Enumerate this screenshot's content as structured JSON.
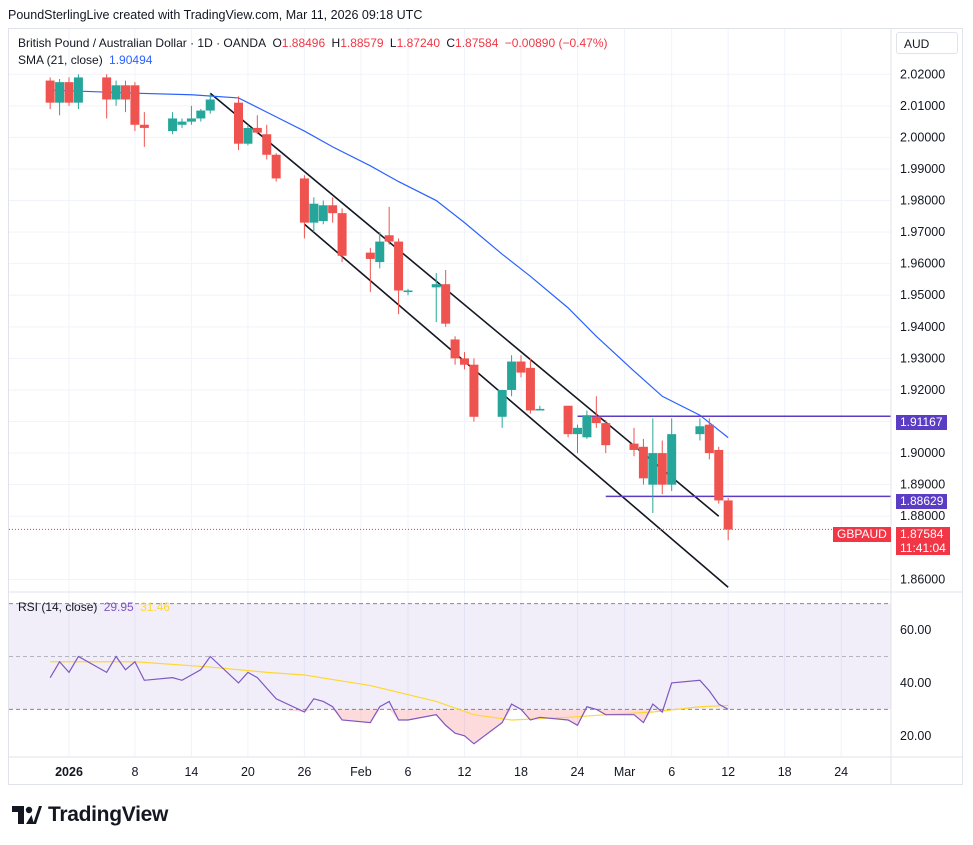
{
  "header": {
    "credit": "PoundSterlingLive created with TradingView.com, Mar 11, 2026 09:18 UTC"
  },
  "legend": {
    "title": "British Pound / Australian Dollar · 1D · OANDA",
    "open_label": "O",
    "open_value": "1.88496",
    "high_label": "H",
    "high_value": "1.88579",
    "low_label": "L",
    "low_value": "1.87240",
    "close_label": "C",
    "close_value": "1.87584",
    "change": "−0.00890 (−0.47%)",
    "sma_label": "SMA (21, close)",
    "sma_value": "1.90494",
    "rsi_label": "RSI (14, close)",
    "rsi_value": "29.95",
    "rsi_ma_value": "31.46"
  },
  "currency_button": "AUD",
  "price_tags": {
    "upper_level": "1.91167",
    "lower_level": "1.88629",
    "symbol": "GBPAUD",
    "last_price": "1.87584",
    "countdown": "11:41:04"
  },
  "colors": {
    "up": "#26a69a",
    "down": "#ef5350",
    "sma": "#2962ff",
    "rsi": "#7e57c2",
    "rsi_ma": "#fdd835",
    "level": "#5b3cc4"
  },
  "branding": {
    "logo_text": "TradingView"
  },
  "chart_data": {
    "type": "candlestick",
    "price_axis": {
      "range": [
        1.856,
        2.028
      ],
      "ticks": [
        "2.02000",
        "2.01000",
        "2.00000",
        "1.99000",
        "1.98000",
        "1.97000",
        "1.96000",
        "1.95000",
        "1.94000",
        "1.93000",
        "1.92000",
        "1.91000",
        "1.90000",
        "1.89000",
        "1.88000",
        "1.86000"
      ],
      "tick_values": [
        2.02,
        2.01,
        2.0,
        1.99,
        1.98,
        1.97,
        1.96,
        1.95,
        1.94,
        1.93,
        1.92,
        1.91,
        1.9,
        1.89,
        1.88,
        1.86
      ]
    },
    "time_axis": {
      "labels": [
        "2026",
        "8",
        "14",
        "20",
        "26",
        "Feb",
        "6",
        "12",
        "18",
        "24",
        "Mar",
        "6",
        "12",
        "18",
        "24"
      ],
      "label_dates": [
        "2026-01-01",
        "2026-01-08",
        "2026-01-14",
        "2026-01-20",
        "2026-01-26",
        "2026-02-01",
        "2026-02-06",
        "2026-02-12",
        "2026-02-18",
        "2026-02-24",
        "2026-03-01",
        "2026-03-06",
        "2026-03-12",
        "2026-03-18",
        "2026-03-24"
      ],
      "bold": [
        "2026"
      ]
    },
    "candles": [
      {
        "d": "2025-12-30",
        "o": 2.018,
        "h": 2.019,
        "l": 2.009,
        "c": 2.011
      },
      {
        "d": "2025-12-31",
        "o": 2.011,
        "h": 2.0185,
        "l": 2.007,
        "c": 2.0175
      },
      {
        "d": "2026-01-01",
        "o": 2.0175,
        "h": 2.019,
        "l": 2.01,
        "c": 2.011
      },
      {
        "d": "2026-01-02",
        "o": 2.011,
        "h": 2.02,
        "l": 2.009,
        "c": 2.019
      },
      {
        "d": "2026-01-05",
        "o": 2.019,
        "h": 2.02,
        "l": 2.006,
        "c": 2.012
      },
      {
        "d": "2026-01-06",
        "o": 2.012,
        "h": 2.018,
        "l": 2.01,
        "c": 2.0165
      },
      {
        "d": "2026-01-07",
        "o": 2.0165,
        "h": 2.018,
        "l": 2.008,
        "c": 2.012
      },
      {
        "d": "2026-01-08",
        "o": 2.0165,
        "h": 2.0175,
        "l": 2.002,
        "c": 2.004
      },
      {
        "d": "2026-01-09",
        "o": 2.004,
        "h": 2.008,
        "l": 1.997,
        "c": 2.003
      },
      {
        "d": "2026-01-12",
        "o": 2.002,
        "h": 2.008,
        "l": 2.001,
        "c": 2.006
      },
      {
        "d": "2026-01-13",
        "o": 2.004,
        "h": 2.006,
        "l": 2.003,
        "c": 2.005
      },
      {
        "d": "2026-01-14",
        "o": 2.005,
        "h": 2.01,
        "l": 2.004,
        "c": 2.006
      },
      {
        "d": "2026-01-15",
        "o": 2.006,
        "h": 2.009,
        "l": 2.005,
        "c": 2.0085
      },
      {
        "d": "2026-01-16",
        "o": 2.0085,
        "h": 2.014,
        "l": 2.0075,
        "c": 2.012
      },
      {
        "d": "2026-01-19",
        "o": 2.011,
        "h": 2.013,
        "l": 1.996,
        "c": 1.998
      },
      {
        "d": "2026-01-20",
        "o": 1.998,
        "h": 2.004,
        "l": 1.9975,
        "c": 2.003
      },
      {
        "d": "2026-01-21",
        "o": 2.003,
        "h": 2.007,
        "l": 2.001,
        "c": 2.0015
      },
      {
        "d": "2026-01-22",
        "o": 2.001,
        "h": 2.004,
        "l": 1.993,
        "c": 1.9945
      },
      {
        "d": "2026-01-23",
        "o": 1.9945,
        "h": 1.995,
        "l": 1.986,
        "c": 1.987
      },
      {
        "d": "2026-01-26",
        "o": 1.987,
        "h": 1.988,
        "l": 1.968,
        "c": 1.973
      },
      {
        "d": "2026-01-27",
        "o": 1.973,
        "h": 1.981,
        "l": 1.97,
        "c": 1.979
      },
      {
        "d": "2026-01-28",
        "o": 1.9735,
        "h": 1.98,
        "l": 1.9725,
        "c": 1.9785
      },
      {
        "d": "2026-01-29",
        "o": 1.9785,
        "h": 1.981,
        "l": 1.973,
        "c": 1.976
      },
      {
        "d": "2026-01-30",
        "o": 1.976,
        "h": 1.9775,
        "l": 1.9605,
        "c": 1.9625
      },
      {
        "d": "2026-02-02",
        "o": 1.9635,
        "h": 1.965,
        "l": 1.951,
        "c": 1.9615
      },
      {
        "d": "2026-02-03",
        "o": 1.9605,
        "h": 1.97,
        "l": 1.9585,
        "c": 1.967
      },
      {
        "d": "2026-02-04",
        "o": 1.969,
        "h": 1.978,
        "l": 1.966,
        "c": 1.967
      },
      {
        "d": "2026-02-05",
        "o": 1.967,
        "h": 1.968,
        "l": 1.944,
        "c": 1.9515
      },
      {
        "d": "2026-02-06",
        "o": 1.951,
        "h": 1.952,
        "l": 1.95,
        "c": 1.9515
      },
      {
        "d": "2026-02-09",
        "o": 1.9525,
        "h": 1.957,
        "l": 1.9415,
        "c": 1.9535
      },
      {
        "d": "2026-02-10",
        "o": 1.9535,
        "h": 1.958,
        "l": 1.94,
        "c": 1.941
      },
      {
        "d": "2026-02-11",
        "o": 1.936,
        "h": 1.937,
        "l": 1.928,
        "c": 1.93
      },
      {
        "d": "2026-02-12",
        "o": 1.93,
        "h": 1.932,
        "l": 1.9265,
        "c": 1.928
      },
      {
        "d": "2026-02-13",
        "o": 1.928,
        "h": 1.93,
        "l": 1.91,
        "c": 1.9115
      },
      {
        "d": "2026-02-16",
        "o": 1.9115,
        "h": 1.92,
        "l": 1.908,
        "c": 1.92
      },
      {
        "d": "2026-02-17",
        "o": 1.92,
        "h": 1.931,
        "l": 1.918,
        "c": 1.929
      },
      {
        "d": "2026-02-18",
        "o": 1.929,
        "h": 1.931,
        "l": 1.924,
        "c": 1.9255
      },
      {
        "d": "2026-02-19",
        "o": 1.927,
        "h": 1.93,
        "l": 1.9125,
        "c": 1.9135
      },
      {
        "d": "2026-02-20",
        "o": 1.9135,
        "h": 1.915,
        "l": 1.9135,
        "c": 1.914
      },
      {
        "d": "2026-02-23",
        "o": 1.915,
        "h": 1.915,
        "l": 1.905,
        "c": 1.906
      },
      {
        "d": "2026-02-24",
        "o": 1.906,
        "h": 1.909,
        "l": 1.9,
        "c": 1.908
      },
      {
        "d": "2026-02-25",
        "o": 1.905,
        "h": 1.9135,
        "l": 1.9045,
        "c": 1.912
      },
      {
        "d": "2026-02-26",
        "o": 1.9115,
        "h": 1.918,
        "l": 1.908,
        "c": 1.9095
      },
      {
        "d": "2026-02-27",
        "o": 1.9095,
        "h": 1.9105,
        "l": 1.9,
        "c": 1.9025
      },
      {
        "d": "2026-03-02",
        "o": 1.903,
        "h": 1.908,
        "l": 1.899,
        "c": 1.901
      },
      {
        "d": "2026-03-03",
        "o": 1.902,
        "h": 1.9045,
        "l": 1.89,
        "c": 1.892
      },
      {
        "d": "2026-03-04",
        "o": 1.89,
        "h": 1.911,
        "l": 1.881,
        "c": 1.9
      },
      {
        "d": "2026-03-05",
        "o": 1.9,
        "h": 1.904,
        "l": 1.887,
        "c": 1.89
      },
      {
        "d": "2026-03-06",
        "o": 1.89,
        "h": 1.911,
        "l": 1.888,
        "c": 1.906
      },
      {
        "d": "2026-03-09",
        "o": 1.906,
        "h": 1.911,
        "l": 1.904,
        "c": 1.9085
      },
      {
        "d": "2026-03-10",
        "o": 1.909,
        "h": 1.911,
        "l": 1.898,
        "c": 1.9
      },
      {
        "d": "2026-03-11",
        "o": 1.901,
        "h": 1.902,
        "l": 1.884,
        "c": 1.885
      },
      {
        "d": "2026-03-12",
        "o": 1.885,
        "h": 1.8858,
        "l": 1.8724,
        "c": 1.8758
      }
    ],
    "sma": {
      "name": "SMA (21, close)",
      "points": [
        [
          "2025-12-30",
          2.015
        ],
        [
          "2026-01-08",
          2.014
        ],
        [
          "2026-01-14",
          2.0135
        ],
        [
          "2026-01-19",
          2.0125
        ],
        [
          "2026-01-22",
          2.008
        ],
        [
          "2026-01-26",
          2.002
        ],
        [
          "2026-01-29",
          1.997
        ],
        [
          "2026-02-02",
          1.991
        ],
        [
          "2026-02-05",
          1.986
        ],
        [
          "2026-02-09",
          1.98
        ],
        [
          "2026-02-12",
          1.973
        ],
        [
          "2026-02-16",
          1.963
        ],
        [
          "2026-02-19",
          1.956
        ],
        [
          "2026-02-23",
          1.946
        ],
        [
          "2026-02-26",
          1.937
        ],
        [
          "2026-03-02",
          1.926
        ],
        [
          "2026-03-05",
          1.918
        ],
        [
          "2026-03-09",
          1.912
        ],
        [
          "2026-03-12",
          1.9049
        ]
      ]
    },
    "channel_lines": [
      {
        "from": [
          "2026-01-16",
          2.014
        ],
        "to": [
          "2026-03-11",
          1.88
        ]
      },
      {
        "from": [
          "2026-01-26",
          1.9725
        ],
        "to": [
          "2026-03-12",
          1.8575
        ]
      }
    ],
    "horizontal_levels": [
      {
        "from": "2026-02-24",
        "value": 1.91167
      },
      {
        "from": "2026-02-27",
        "value": 1.88629
      }
    ],
    "last_price": 1.87584,
    "rsi": {
      "name": "RSI (14, close)",
      "axis": {
        "range": [
          12,
          74
        ],
        "ticks": [
          "60.00",
          "40.00",
          "20.00"
        ],
        "tick_values": [
          60,
          40,
          20
        ],
        "bands": [
          70,
          50,
          30
        ]
      },
      "points": [
        [
          "2025-12-30",
          42
        ],
        [
          "2025-12-31",
          48
        ],
        [
          "2026-01-01",
          44
        ],
        [
          "2026-01-02",
          50
        ],
        [
          "2026-01-05",
          44
        ],
        [
          "2026-01-06",
          50
        ],
        [
          "2026-01-07",
          45
        ],
        [
          "2026-01-08",
          48
        ],
        [
          "2026-01-09",
          41
        ],
        [
          "2026-01-12",
          42
        ],
        [
          "2026-01-13",
          41
        ],
        [
          "2026-01-14",
          43
        ],
        [
          "2026-01-15",
          45
        ],
        [
          "2026-01-16",
          50
        ],
        [
          "2026-01-19",
          40
        ],
        [
          "2026-01-20",
          44
        ],
        [
          "2026-01-21",
          42
        ],
        [
          "2026-01-22",
          38
        ],
        [
          "2026-01-23",
          34
        ],
        [
          "2026-01-26",
          29
        ],
        [
          "2026-01-27",
          34
        ],
        [
          "2026-01-28",
          33
        ],
        [
          "2026-01-29",
          31
        ],
        [
          "2026-01-30",
          26
        ],
        [
          "2026-02-02",
          25
        ],
        [
          "2026-02-03",
          31
        ],
        [
          "2026-02-04",
          33
        ],
        [
          "2026-02-05",
          26
        ],
        [
          "2026-02-06",
          26
        ],
        [
          "2026-02-09",
          28
        ],
        [
          "2026-02-10",
          24
        ],
        [
          "2026-02-11",
          21
        ],
        [
          "2026-02-12",
          20
        ],
        [
          "2026-02-13",
          17
        ],
        [
          "2026-02-16",
          25
        ],
        [
          "2026-02-17",
          32
        ],
        [
          "2026-02-18",
          30
        ],
        [
          "2026-02-19",
          26
        ],
        [
          "2026-02-20",
          27
        ],
        [
          "2026-02-23",
          26
        ],
        [
          "2026-02-24",
          24
        ],
        [
          "2026-02-25",
          31
        ],
        [
          "2026-02-26",
          30
        ],
        [
          "2026-02-27",
          28
        ],
        [
          "2026-03-02",
          28
        ],
        [
          "2026-03-03",
          25
        ],
        [
          "2026-03-04",
          32
        ],
        [
          "2026-03-05",
          29
        ],
        [
          "2026-03-06",
          40
        ],
        [
          "2026-03-09",
          41
        ],
        [
          "2026-03-10",
          37
        ],
        [
          "2026-03-11",
          32
        ],
        [
          "2026-03-12",
          30
        ]
      ],
      "ma_points": [
        [
          "2025-12-30",
          48
        ],
        [
          "2026-01-08",
          48
        ],
        [
          "2026-01-16",
          46
        ],
        [
          "2026-01-22",
          44
        ],
        [
          "2026-01-26",
          43
        ],
        [
          "2026-02-02",
          39
        ],
        [
          "2026-02-09",
          33
        ],
        [
          "2026-02-13",
          28
        ],
        [
          "2026-02-17",
          26
        ],
        [
          "2026-02-23",
          27
        ],
        [
          "2026-02-27",
          28
        ],
        [
          "2026-03-04",
          29
        ],
        [
          "2026-03-09",
          31
        ],
        [
          "2026-03-12",
          31.5
        ]
      ]
    }
  }
}
